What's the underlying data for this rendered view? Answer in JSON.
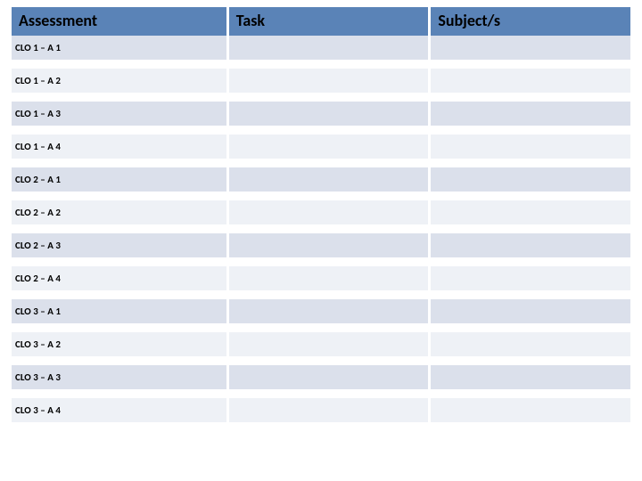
{
  "table": {
    "type": "table",
    "header": {
      "bg": "#5a83b7",
      "fontsize": 18,
      "cells": [
        {
          "label": "Assessment"
        },
        {
          "label": "Task"
        },
        {
          "label": "Subject/s"
        }
      ]
    },
    "row_bg_alt": [
      "#dbe0eb",
      "#eef1f6"
    ],
    "row_fontsize": 11,
    "row_separator_height": 10,
    "columns": [
      "assessment",
      "task",
      "subject"
    ],
    "rows": [
      {
        "assessment": "CLO 1 – A 1",
        "task": "",
        "subject": ""
      },
      {
        "assessment": "CLO 1 – A 2",
        "task": "",
        "subject": ""
      },
      {
        "assessment": "CLO 1 – A 3",
        "task": "",
        "subject": ""
      },
      {
        "assessment": "CLO 1 – A 4",
        "task": "",
        "subject": ""
      },
      {
        "assessment": "CLO 2 – A 1",
        "task": "",
        "subject": ""
      },
      {
        "assessment": "CLO 2 – A 2",
        "task": "",
        "subject": ""
      },
      {
        "assessment": "CLO 2 – A 3",
        "task": "",
        "subject": ""
      },
      {
        "assessment": "CLO 2 – A 4",
        "task": "",
        "subject": ""
      },
      {
        "assessment": "CLO 3 – A 1",
        "task": "",
        "subject": ""
      },
      {
        "assessment": "CLO 3 – A 2",
        "task": "",
        "subject": ""
      },
      {
        "assessment": "CLO 3 – A 3",
        "task": "",
        "subject": ""
      },
      {
        "assessment": "CLO 3 – A 4",
        "task": "",
        "subject": ""
      }
    ]
  }
}
